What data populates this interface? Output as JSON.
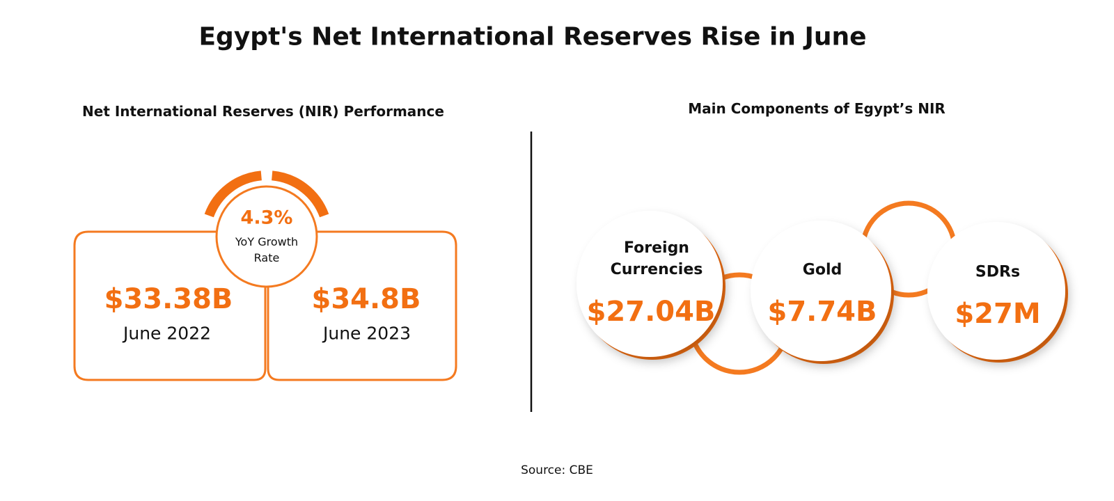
{
  "title": "Egypt's Net International Reserves Rise in June",
  "left": {
    "title": "Net International Reserves (NIR) Performance",
    "growth": {
      "value": "4.3%",
      "label": "YoY Growth Rate"
    },
    "cards": [
      {
        "value": "$33.38B",
        "label": "June 2022"
      },
      {
        "value": "$34.8B",
        "label": "June 2023"
      }
    ]
  },
  "right": {
    "title": "Main Components of Egypt’s NIR",
    "components": [
      {
        "name": "Foreign Currencies",
        "value": "$27.04B"
      },
      {
        "name": "Gold",
        "value": "$7.74B"
      },
      {
        "name": "SDRs",
        "value": "$27M"
      }
    ]
  },
  "source": "Source: CBE"
}
